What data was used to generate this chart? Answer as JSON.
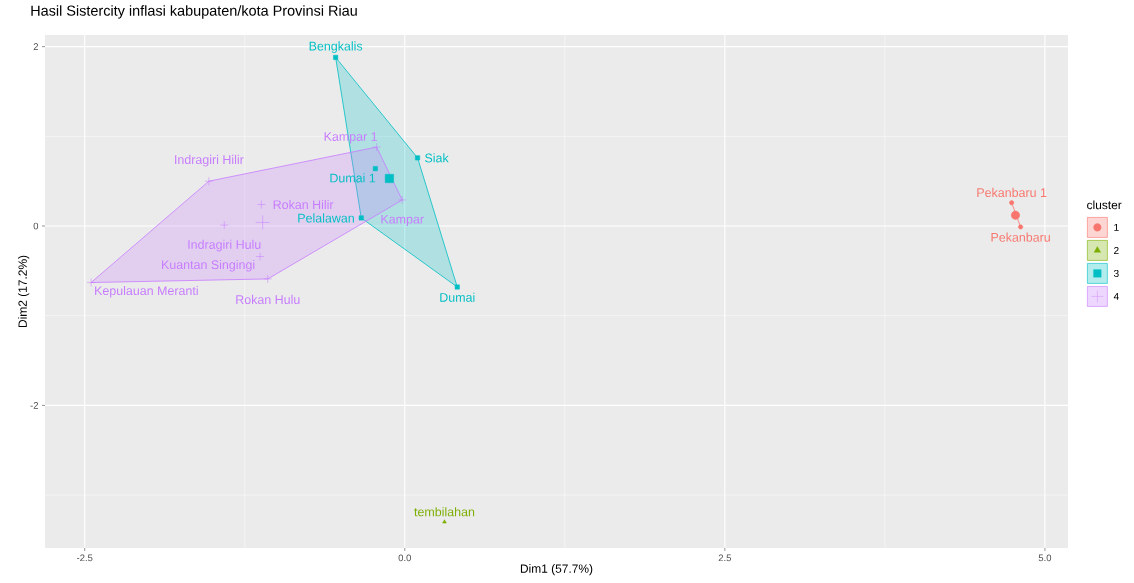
{
  "chart_data": {
    "type": "scatter",
    "title": "Hasil Sistercity inflasi kabupaten/kota Provinsi Riau",
    "xlabel": "Dim1 (57.7%)",
    "ylabel": "Dim2 (17.2%)",
    "legend_title": "cluster",
    "legend": "right",
    "grid": true,
    "xlim": [
      -2.81,
      5.18
    ],
    "ylim": [
      -3.59,
      2.13
    ],
    "xticks": [
      {
        "value": -2.5,
        "label": "-2.5"
      },
      {
        "value": 0,
        "label": "0.0"
      },
      {
        "value": 2.5,
        "label": "2.5"
      },
      {
        "value": 5,
        "label": "5.0"
      }
    ],
    "yticks": [
      -2,
      0,
      2
    ],
    "series": [
      {
        "name": "1",
        "color": "#f8766d",
        "marker": "circle",
        "x": [
          4.74,
          4.81
        ],
        "values": [
          0.26,
          -0.01
        ],
        "value_labels": [
          "Pekanbaru 1",
          "Pekanbaru"
        ]
      },
      {
        "name": "2",
        "color": "#7cae00",
        "marker": "triangle",
        "x": [
          0.31
        ],
        "values": [
          -3.3
        ],
        "value_labels": [
          "tembilahan"
        ]
      },
      {
        "name": "3",
        "color": "#00bfc4",
        "marker": "square",
        "x": [
          -0.54,
          0.1,
          -0.23,
          -0.34,
          0.41
        ],
        "values": [
          1.88,
          0.76,
          0.64,
          0.09,
          -0.68
        ],
        "value_labels": [
          "Bengkalis",
          "Siak",
          "Dumai 1",
          "Pelalawan",
          "Dumai"
        ]
      },
      {
        "name": "4",
        "color": "#c77cff",
        "marker": "cross",
        "x": [
          -0.22,
          -0.02,
          -1.53,
          -1.12,
          -1.41,
          -1.13,
          -1.07,
          -2.45
        ],
        "values": [
          0.88,
          0.29,
          0.5,
          0.24,
          0.01,
          -0.34,
          -0.59,
          -0.63
        ],
        "value_labels": [
          "Kampar 1",
          "Kampar",
          "Indragiri Hilir",
          "Rokan Hilir",
          "Indragiri Hulu",
          "Kuantan Singingi",
          "Rokan Hulu",
          "Kepulauan Meranti"
        ]
      },
      {
        "color": "#f8766d",
        "marker": "circle",
        "x": [
          4.77
        ],
        "values": [
          0.12
        ]
      },
      {
        "color": "#00bfc4",
        "marker": "square",
        "x": [
          -0.12
        ],
        "values": [
          0.53
        ]
      },
      {
        "color": "#c77cff",
        "marker": "cross",
        "x": [
          -1.11
        ],
        "values": [
          0.04
        ]
      }
    ]
  }
}
